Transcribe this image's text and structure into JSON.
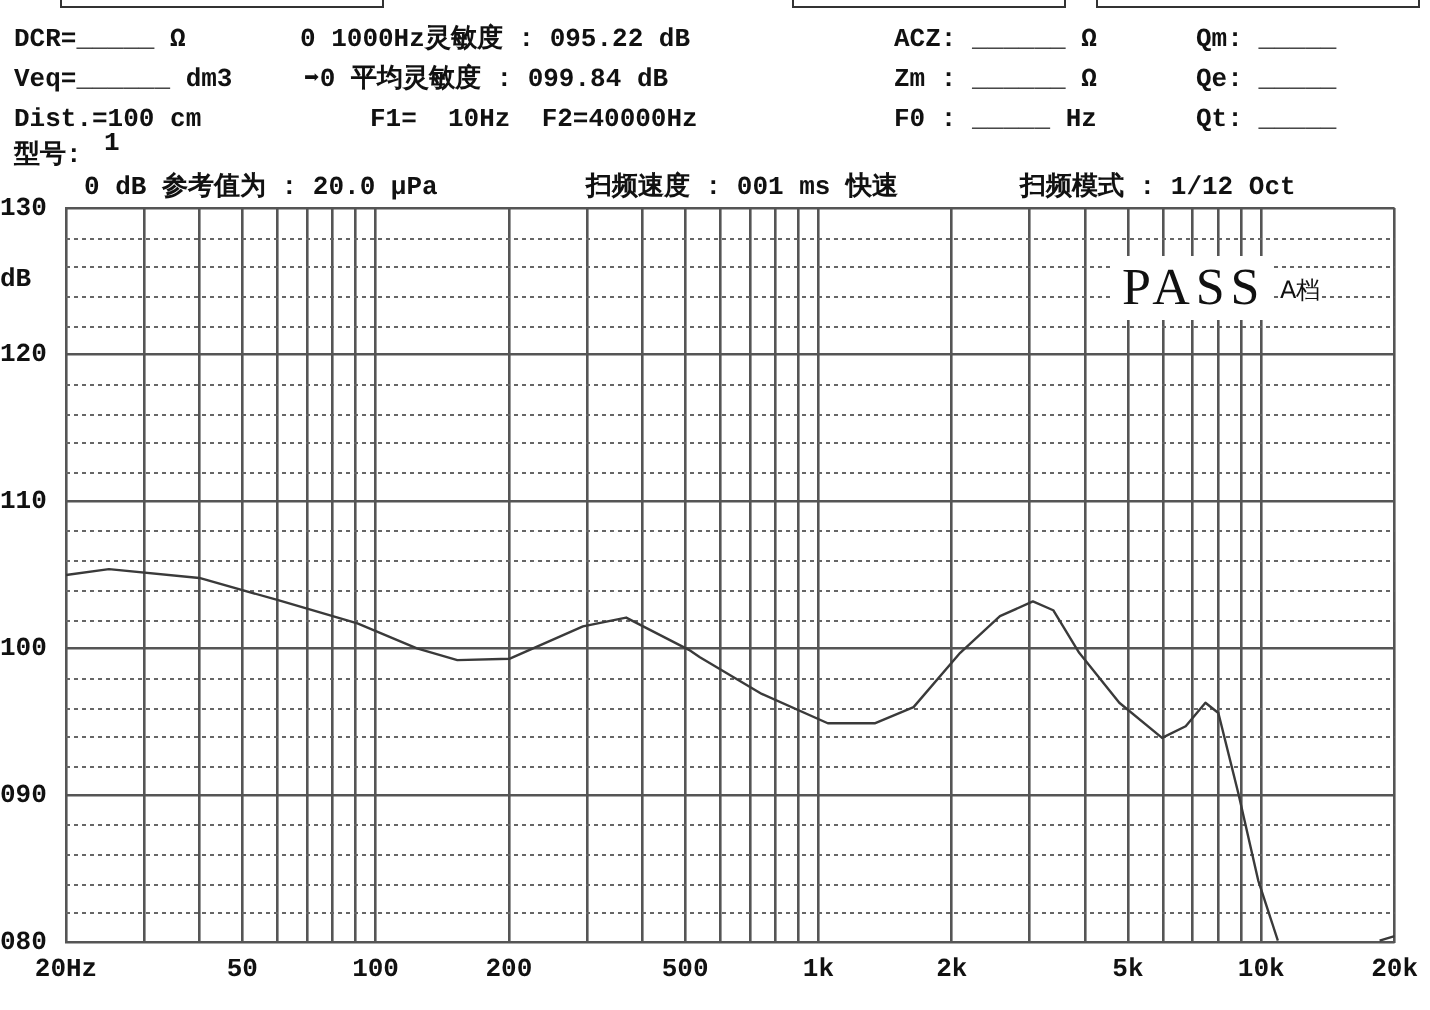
{
  "chart_data": {
    "type": "line",
    "annotations": [
      "DCR=_____ Ω",
      "0 1000Hz灵敏度 : 095.22 dB",
      "ACZ: ______ Ω",
      "Qm: _____",
      "Veq=______ dm3",
      "➡0 平均灵敏度 : 099.84 dB",
      "Zm : ______ Ω",
      "Qe: _____",
      "Dist.=100 cm",
      "F1=  10Hz  F2=40000Hz",
      "F0 : _____ Hz",
      "Qt: _____",
      "型号:",
      "1",
      "0 dB 参考值为 : 20.0 μPa",
      "扫频速度 : 001 ms 快速",
      "扫频模式 : 1/12 Oct",
      "PASS",
      "A档"
    ],
    "ylabel": "dB",
    "log": "x",
    "grid": true,
    "xlim": [
      20,
      20000
    ],
    "xticks": [
      {
        "value": 20,
        "label": "20Hz"
      },
      {
        "value": 30,
        "label": null
      },
      {
        "value": 40,
        "label": null
      },
      50,
      {
        "value": 60,
        "label": null
      },
      {
        "value": 70,
        "label": null
      },
      {
        "value": 80,
        "label": null
      },
      {
        "value": 90,
        "label": null
      },
      100,
      200,
      {
        "value": 300,
        "label": null
      },
      {
        "value": 400,
        "label": null
      },
      500,
      {
        "value": 600,
        "label": null
      },
      {
        "value": 700,
        "label": null
      },
      {
        "value": 800,
        "label": null
      },
      {
        "value": 900,
        "label": null
      },
      {
        "value": 1000,
        "label": "1k"
      },
      {
        "value": 2000,
        "label": "2k"
      },
      {
        "value": 3000,
        "label": null
      },
      {
        "value": 4000,
        "label": null
      },
      {
        "value": 5000,
        "label": "5k"
      },
      {
        "value": 6000,
        "label": null
      },
      {
        "value": 7000,
        "label": null
      },
      {
        "value": 8000,
        "label": null
      },
      {
        "value": 9000,
        "label": null
      },
      {
        "value": 10000,
        "label": "10k"
      },
      {
        "value": 20000,
        "label": "20k"
      }
    ],
    "ylim": [
      80,
      130
    ],
    "yticks": [
      {
        "value": 80,
        "label": "080"
      },
      {
        "value": 82,
        "label": null
      },
      {
        "value": 84,
        "label": null
      },
      {
        "value": 86,
        "label": null
      },
      {
        "value": 88,
        "label": null
      },
      {
        "value": 90,
        "label": "090"
      },
      {
        "value": 92,
        "label": null
      },
      {
        "value": 94,
        "label": null
      },
      {
        "value": 96,
        "label": null
      },
      {
        "value": 98,
        "label": null
      },
      100,
      {
        "value": 102,
        "label": null
      },
      {
        "value": 104,
        "label": null
      },
      {
        "value": 106,
        "label": null
      },
      {
        "value": 108,
        "label": null
      },
      110,
      {
        "value": 112,
        "label": null
      },
      {
        "value": 114,
        "label": null
      },
      {
        "value": 116,
        "label": null
      },
      {
        "value": 118,
        "label": null
      },
      120,
      {
        "value": 122,
        "label": null
      },
      {
        "value": 124,
        "label": null
      },
      {
        "value": 126,
        "label": null
      },
      {
        "value": 128,
        "label": null
      },
      130
    ],
    "x": [
      20,
      25,
      40,
      60,
      91,
      124,
      153,
      201,
      294,
      368,
      510,
      540,
      745,
      1050,
      1340,
      1640,
      2090,
      2570,
      3050,
      3390,
      3880,
      4780,
      5970,
      6750,
      7480,
      8000,
      8880,
      9840,
      10900,
      15000,
      18500,
      20000
    ],
    "series": [
      {
        "color": "#3a3a3a",
        "values": [
          105.0,
          105.4,
          104.8,
          103.3,
          101.7,
          100.0,
          99.2,
          99.3,
          101.5,
          102.1,
          99.9,
          99.4,
          96.9,
          94.9,
          94.9,
          96.0,
          99.7,
          102.2,
          103.2,
          102.6,
          99.7,
          96.3,
          93.9,
          94.7,
          96.3,
          95.6,
          90.1,
          84.2,
          80.1,
          null,
          80.1,
          80.4
        ]
      }
    ]
  }
}
